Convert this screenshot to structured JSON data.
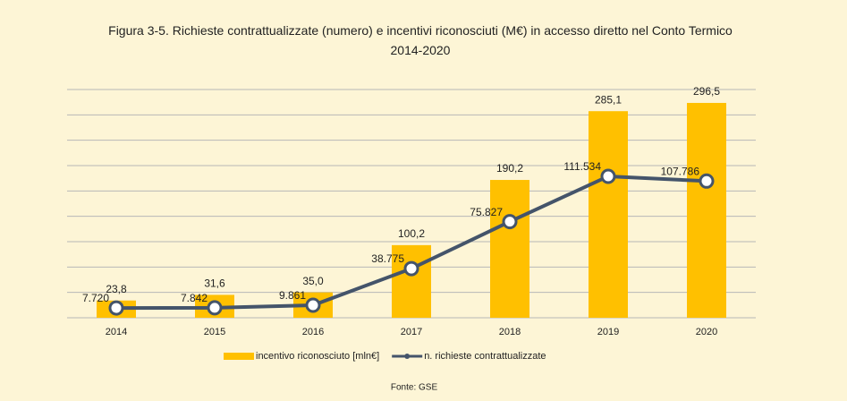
{
  "chart_data": {
    "type": "bar_line",
    "title": "Figura 3-5. Richieste contrattualizzate (numero) e incentivi riconosciuti (M€) in accesso diretto nel Conto Termico 2014-2020",
    "categories": [
      "2014",
      "2015",
      "2016",
      "2017",
      "2018",
      "2019",
      "2020"
    ],
    "series": [
      {
        "name": "incentivo riconosciuto [mln€]",
        "color": "#ffc000",
        "type": "bar",
        "values": [
          23.8,
          31.6,
          35.0,
          100.2,
          190.2,
          285.1,
          296.5
        ],
        "value_labels": [
          "23,8",
          "31,6",
          "35,0",
          "100,2",
          "190,2",
          "285,1",
          "296,5"
        ]
      },
      {
        "name": "n. richieste contrattualizzate",
        "color": "#44546a",
        "type": "line",
        "axis": "y2",
        "values": [
          7720,
          7842,
          9861,
          38775,
          75827,
          111534,
          107786
        ],
        "value_labels": [
          "7.720",
          "7.842",
          "9.861",
          "38.775",
          "75.827",
          "111.534",
          "107.786"
        ]
      }
    ],
    "ylim": [
      0,
      315
    ],
    "yticks": [
      0,
      35,
      70,
      105,
      140,
      175,
      210,
      245,
      280,
      315
    ],
    "y2lim": [
      0,
      180000
    ],
    "y2ticks": [
      0,
      20000,
      40000,
      60000,
      80000,
      100000,
      120000,
      140000,
      160000,
      180000
    ],
    "grid": true,
    "legend": "bottom",
    "source": "Fonte: GSE"
  }
}
